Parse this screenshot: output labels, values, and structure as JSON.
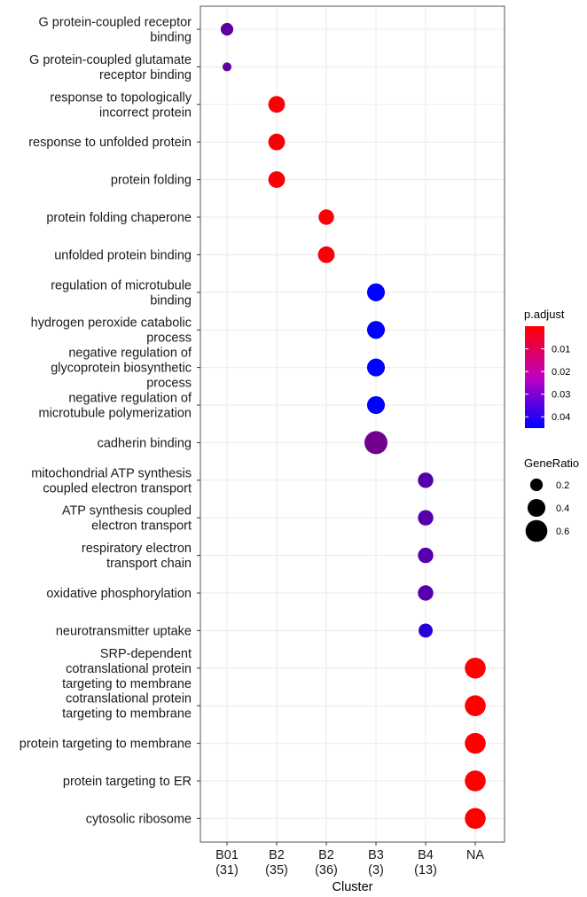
{
  "chart_data": {
    "type": "scatter",
    "xlabel": "Cluster",
    "ylabel": "",
    "x_categories": [
      {
        "name": "B01",
        "count": "(31)"
      },
      {
        "name": "B2",
        "count": "(35)"
      },
      {
        "name": "B2",
        "count": "(36)"
      },
      {
        "name": "B3",
        "count": "(3)"
      },
      {
        "name": "B4",
        "count": "(13)"
      },
      {
        "name": "NA",
        "count": ""
      }
    ],
    "y_categories": [
      [
        "G protein-coupled receptor",
        "binding"
      ],
      [
        "G protein-coupled glutamate",
        "receptor binding"
      ],
      [
        "response to topologically",
        "incorrect protein"
      ],
      [
        "response to unfolded protein"
      ],
      [
        "protein folding"
      ],
      [
        "protein folding chaperone"
      ],
      [
        "unfolded protein binding"
      ],
      [
        "regulation of microtubule",
        "binding"
      ],
      [
        "hydrogen peroxide catabolic",
        "process"
      ],
      [
        "negative regulation of",
        "glycoprotein biosynthetic",
        "process"
      ],
      [
        "negative regulation of",
        "microtubule polymerization"
      ],
      [
        "cadherin binding"
      ],
      [
        "mitochondrial ATP synthesis",
        "coupled electron transport"
      ],
      [
        "ATP synthesis coupled",
        "electron transport"
      ],
      [
        "respiratory electron",
        "transport chain"
      ],
      [
        "oxidative phosphorylation"
      ],
      [
        "neurotransmitter uptake"
      ],
      [
        "SRP-dependent",
        "cotranslational protein",
        "targeting to membrane"
      ],
      [
        "cotranslational protein",
        "targeting to membrane"
      ],
      [
        "protein targeting to membrane"
      ],
      [
        "protein targeting to ER"
      ],
      [
        "cytosolic ribosome"
      ]
    ],
    "points": [
      {
        "x": 0,
        "y": 0,
        "p_adjust": 0.028,
        "gene_ratio": 0.2
      },
      {
        "x": 0,
        "y": 1,
        "p_adjust": 0.028,
        "gene_ratio": 0.1
      },
      {
        "x": 1,
        "y": 2,
        "p_adjust": 0.001,
        "gene_ratio": 0.35
      },
      {
        "x": 1,
        "y": 3,
        "p_adjust": 0.001,
        "gene_ratio": 0.35
      },
      {
        "x": 1,
        "y": 4,
        "p_adjust": 0.001,
        "gene_ratio": 0.35
      },
      {
        "x": 2,
        "y": 5,
        "p_adjust": 0.001,
        "gene_ratio": 0.3
      },
      {
        "x": 2,
        "y": 6,
        "p_adjust": 0.001,
        "gene_ratio": 0.35
      },
      {
        "x": 3,
        "y": 7,
        "p_adjust": 0.045,
        "gene_ratio": 0.4
      },
      {
        "x": 3,
        "y": 8,
        "p_adjust": 0.045,
        "gene_ratio": 0.4
      },
      {
        "x": 3,
        "y": 9,
        "p_adjust": 0.045,
        "gene_ratio": 0.4
      },
      {
        "x": 3,
        "y": 10,
        "p_adjust": 0.045,
        "gene_ratio": 0.4
      },
      {
        "x": 3,
        "y": 11,
        "p_adjust": 0.025,
        "gene_ratio": 0.67
      },
      {
        "x": 4,
        "y": 12,
        "p_adjust": 0.03,
        "gene_ratio": 0.3
      },
      {
        "x": 4,
        "y": 13,
        "p_adjust": 0.03,
        "gene_ratio": 0.3
      },
      {
        "x": 4,
        "y": 14,
        "p_adjust": 0.03,
        "gene_ratio": 0.3
      },
      {
        "x": 4,
        "y": 15,
        "p_adjust": 0.03,
        "gene_ratio": 0.3
      },
      {
        "x": 4,
        "y": 16,
        "p_adjust": 0.038,
        "gene_ratio": 0.25
      },
      {
        "x": 5,
        "y": 17,
        "p_adjust": 0.0,
        "gene_ratio": 0.55
      },
      {
        "x": 5,
        "y": 18,
        "p_adjust": 0.0,
        "gene_ratio": 0.55
      },
      {
        "x": 5,
        "y": 19,
        "p_adjust": 0.0,
        "gene_ratio": 0.55
      },
      {
        "x": 5,
        "y": 20,
        "p_adjust": 0.0,
        "gene_ratio": 0.55
      },
      {
        "x": 5,
        "y": 21,
        "p_adjust": 0.0,
        "gene_ratio": 0.55
      }
    ],
    "color_legend": {
      "title": "p.adjust",
      "ticks": [
        "0.01",
        "0.02",
        "0.03",
        "0.04"
      ],
      "tick_values": [
        0.01,
        0.02,
        0.03,
        0.04
      ],
      "range": [
        0.0,
        0.045
      ],
      "low_color": "#FF0000",
      "high_color": "#0000FF"
    },
    "size_legend": {
      "title": "GeneRatio",
      "ticks": [
        "0.2",
        "0.4",
        "0.6"
      ],
      "tick_values": [
        0.2,
        0.4,
        0.6
      ]
    },
    "grid": true,
    "legend_position": "right"
  }
}
